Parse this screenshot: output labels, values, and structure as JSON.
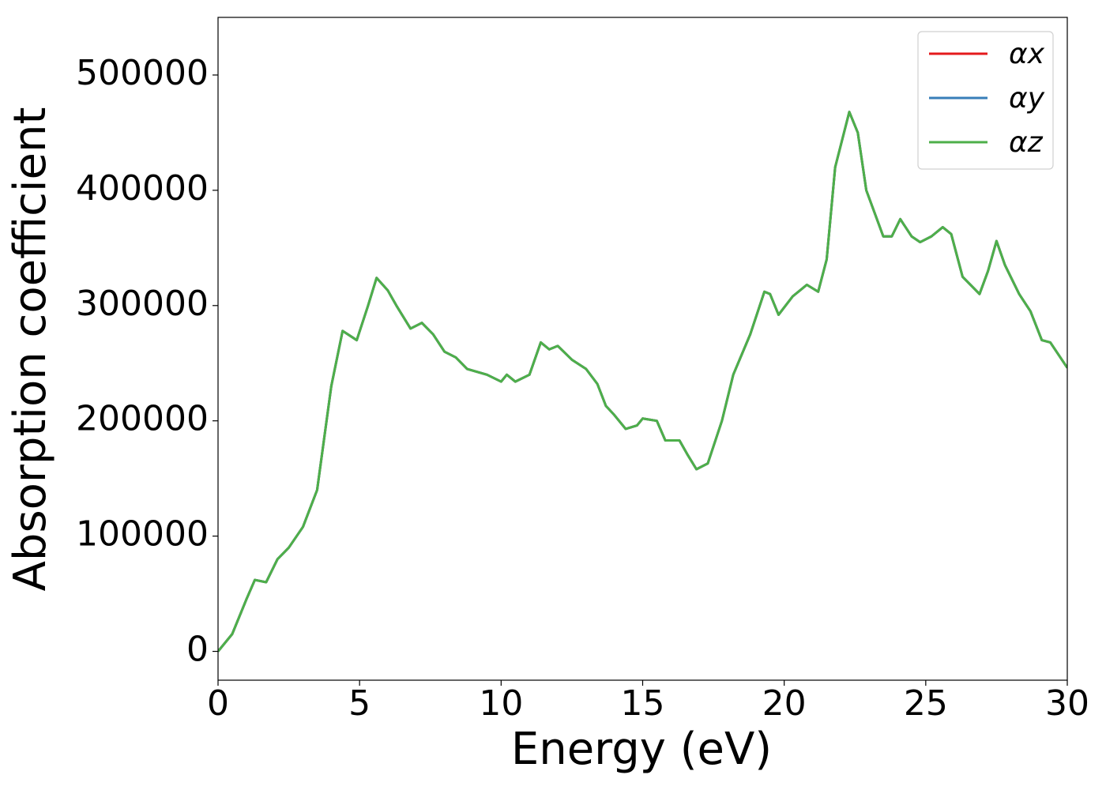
{
  "chart_data": {
    "type": "line",
    "xlabel": "Energy (eV)",
    "ylabel": "Absorption coefficient",
    "x": [
      0,
      0.5,
      1.0,
      1.3,
      1.7,
      2.1,
      2.5,
      3.0,
      3.5,
      4.0,
      4.4,
      4.9,
      5.3,
      5.6,
      6.0,
      6.3,
      6.8,
      7.2,
      7.6,
      8.0,
      8.4,
      8.8,
      9.5,
      10.0,
      10.2,
      10.5,
      11.0,
      11.4,
      11.7,
      12.0,
      12.5,
      13.0,
      13.4,
      13.7,
      14.0,
      14.4,
      14.8,
      15.0,
      15.5,
      15.8,
      16.3,
      16.6,
      16.9,
      17.3,
      17.8,
      18.2,
      18.8,
      19.3,
      19.5,
      19.8,
      20.3,
      20.8,
      21.2,
      21.5,
      21.8,
      22.3,
      22.6,
      22.9,
      23.5,
      23.8,
      24.1,
      24.5,
      24.8,
      25.2,
      25.6,
      25.9,
      26.3,
      26.9,
      27.2,
      27.5,
      27.8,
      28.3,
      28.7,
      29.1,
      29.4,
      30.0
    ],
    "series": [
      {
        "name": "αx",
        "color": "#e41a1c",
        "values": [
          0,
          15000,
          45000,
          62000,
          60000,
          80000,
          90000,
          108000,
          140000,
          230000,
          278000,
          270000,
          300000,
          324000,
          313000,
          300000,
          280000,
          285000,
          275000,
          260000,
          255000,
          245000,
          240000,
          234000,
          240000,
          234000,
          240000,
          268000,
          262000,
          265000,
          253000,
          245000,
          232000,
          213000,
          205000,
          193000,
          196000,
          202000,
          200000,
          183000,
          183000,
          170000,
          158000,
          163000,
          200000,
          240000,
          275000,
          312000,
          310000,
          292000,
          308000,
          318000,
          312000,
          340000,
          420000,
          468000,
          450000,
          400000,
          360000,
          360000,
          375000,
          360000,
          355000,
          360000,
          368000,
          362000,
          325000,
          310000,
          330000,
          356000,
          335000,
          310000,
          295000,
          270000,
          268000,
          246000
        ]
      },
      {
        "name": "αy",
        "color": "#377eb8",
        "values": [
          0,
          15000,
          45000,
          62000,
          60000,
          80000,
          90000,
          108000,
          140000,
          230000,
          278000,
          270000,
          300000,
          324000,
          313000,
          300000,
          280000,
          285000,
          275000,
          260000,
          255000,
          245000,
          240000,
          234000,
          240000,
          234000,
          240000,
          268000,
          262000,
          265000,
          253000,
          245000,
          232000,
          213000,
          205000,
          193000,
          196000,
          202000,
          200000,
          183000,
          183000,
          170000,
          158000,
          163000,
          200000,
          240000,
          275000,
          312000,
          310000,
          292000,
          308000,
          318000,
          312000,
          340000,
          420000,
          468000,
          450000,
          400000,
          360000,
          360000,
          375000,
          360000,
          355000,
          360000,
          368000,
          362000,
          325000,
          310000,
          330000,
          356000,
          335000,
          310000,
          295000,
          270000,
          268000,
          246000
        ]
      },
      {
        "name": "αz",
        "color": "#4daf4a",
        "values": [
          0,
          15000,
          45000,
          62000,
          60000,
          80000,
          90000,
          108000,
          140000,
          230000,
          278000,
          270000,
          300000,
          324000,
          313000,
          300000,
          280000,
          285000,
          275000,
          260000,
          255000,
          245000,
          240000,
          234000,
          240000,
          234000,
          240000,
          268000,
          262000,
          265000,
          253000,
          245000,
          232000,
          213000,
          205000,
          193000,
          196000,
          202000,
          200000,
          183000,
          183000,
          170000,
          158000,
          163000,
          200000,
          240000,
          275000,
          312000,
          310000,
          292000,
          308000,
          318000,
          312000,
          340000,
          420000,
          468000,
          450000,
          400000,
          360000,
          360000,
          375000,
          360000,
          355000,
          360000,
          368000,
          362000,
          325000,
          310000,
          330000,
          356000,
          335000,
          310000,
          295000,
          270000,
          268000,
          246000
        ]
      }
    ],
    "xlim": [
      0,
      30
    ],
    "xticks": [
      0,
      5,
      10,
      15,
      20,
      25,
      30
    ],
    "ylim": [
      -25000,
      550000
    ],
    "yticks": [
      0,
      100000,
      200000,
      300000,
      400000,
      500000
    ],
    "grid": false,
    "legend": "upper right"
  }
}
